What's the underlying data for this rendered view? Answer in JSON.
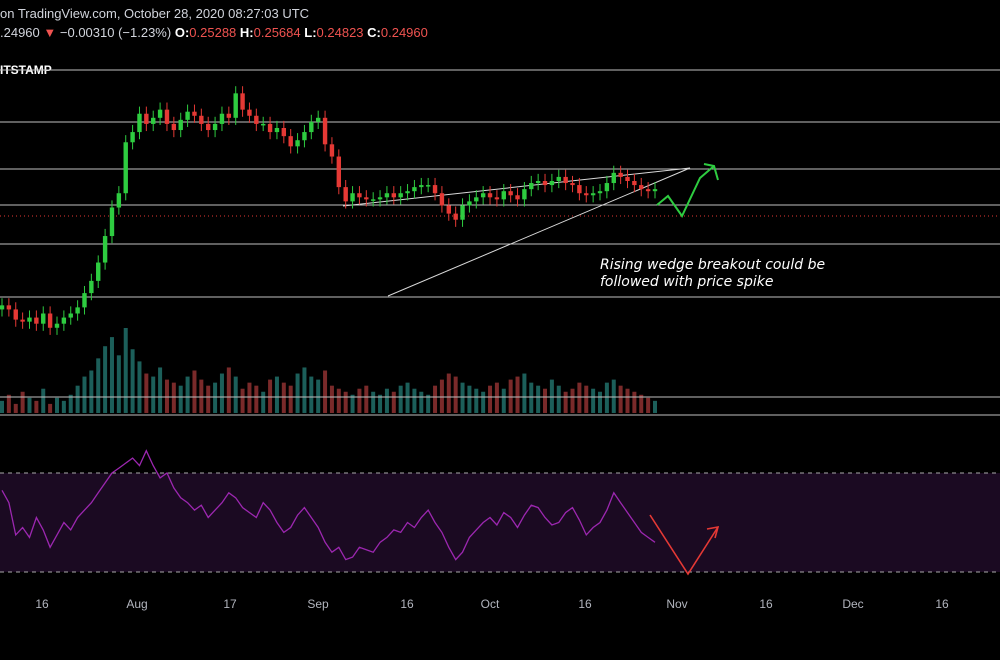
{
  "header": {
    "attribution": "on TradingView.com, October 28, 2020 08:27:03 UTC",
    "price": ".24960",
    "change_arrow": "▼",
    "change": "−0.00310 (−1.23%)",
    "ohlc": [
      {
        "key": "O:",
        "value": "0.25288"
      },
      {
        "key": "H:",
        "value": "0.25684"
      },
      {
        "key": "L:",
        "value": "0.24823"
      },
      {
        "key": "C:",
        "value": "0.24960"
      }
    ],
    "exchange_label": "ITSTAMP"
  },
  "annotation": {
    "line1": "Rising wedge breakout could be",
    "line2": "followed with price spike"
  },
  "colors": {
    "background": "#000000",
    "up": "#26a69a",
    "candle_up": "#2ecc40",
    "candle_down": "#e53935",
    "rsi": "#9c27b0",
    "rsi_band": "#1b0a22",
    "projection_green": "#2ecc40",
    "projection_red": "#e53935",
    "level_line": "#bfbfbf",
    "wedge_line": "#d9d9d9",
    "text": "#d1d4dc"
  },
  "chart_data": {
    "type": "candlestick",
    "x_axis_labels": [
      "16",
      "Aug",
      "17",
      "Sep",
      "16",
      "Oct",
      "16",
      "Nov",
      "16",
      "Dec",
      "16"
    ],
    "horizontal_levels_count": 6,
    "price_series": [
      0.207,
      0.205,
      0.2,
      0.199,
      0.201,
      0.198,
      0.203,
      0.196,
      0.198,
      0.201,
      0.203,
      0.206,
      0.213,
      0.219,
      0.228,
      0.241,
      0.255,
      0.262,
      0.287,
      0.292,
      0.301,
      0.296,
      0.299,
      0.303,
      0.296,
      0.293,
      0.298,
      0.302,
      0.3,
      0.296,
      0.293,
      0.296,
      0.301,
      0.299,
      0.311,
      0.303,
      0.3,
      0.296,
      0.296,
      0.292,
      0.294,
      0.29,
      0.285,
      0.288,
      0.292,
      0.297,
      0.299,
      0.286,
      0.28,
      0.265,
      0.258,
      0.262,
      0.26,
      0.259,
      0.259,
      0.26,
      0.262,
      0.26,
      0.262,
      0.263,
      0.265,
      0.266,
      0.266,
      0.262,
      0.256,
      0.252,
      0.249,
      0.256,
      0.258,
      0.26,
      0.262,
      0.26,
      0.259,
      0.263,
      0.261,
      0.259,
      0.264,
      0.267,
      0.268,
      0.266,
      0.268,
      0.27,
      0.267,
      0.266,
      0.262,
      0.261,
      0.262,
      0.263,
      0.267,
      0.272,
      0.27,
      0.268,
      0.266,
      0.264,
      0.263,
      0.264
    ],
    "volume_series": [
      4,
      6,
      3,
      7,
      5,
      4,
      8,
      3,
      5,
      4,
      6,
      9,
      12,
      14,
      18,
      22,
      25,
      19,
      28,
      21,
      17,
      13,
      12,
      15,
      11,
      10,
      9,
      12,
      14,
      11,
      9,
      10,
      13,
      15,
      12,
      8,
      10,
      9,
      7,
      11,
      12,
      10,
      9,
      13,
      15,
      12,
      11,
      14,
      9,
      8,
      7,
      6,
      8,
      9,
      7,
      6,
      8,
      7,
      9,
      10,
      8,
      7,
      6,
      9,
      11,
      13,
      12,
      10,
      9,
      8,
      7,
      9,
      10,
      8,
      11,
      12,
      13,
      10,
      9,
      8,
      11,
      9,
      7,
      8,
      10,
      9,
      8,
      7,
      10,
      11,
      9,
      8,
      7,
      6,
      5,
      4
    ],
    "rsi_series": [
      63,
      58,
      45,
      48,
      44,
      52,
      47,
      40,
      45,
      50,
      47,
      52,
      55,
      58,
      62,
      66,
      70,
      72,
      74,
      76,
      73,
      79,
      73,
      68,
      70,
      64,
      60,
      58,
      55,
      57,
      52,
      55,
      58,
      62,
      60,
      56,
      54,
      52,
      58,
      55,
      50,
      46,
      48,
      53,
      56,
      52,
      48,
      42,
      38,
      40,
      35,
      36,
      40,
      39,
      38,
      42,
      44,
      47,
      46,
      50,
      48,
      52,
      55,
      50,
      46,
      40,
      35,
      38,
      44,
      47,
      50,
      52,
      49,
      54,
      52,
      48,
      53,
      57,
      56,
      52,
      49,
      50,
      54,
      56,
      51,
      45,
      48,
      50,
      55,
      62,
      58,
      54,
      50,
      46,
      44,
      42
    ],
    "rsi_upper": 70,
    "rsi_lower": 30,
    "y_min": 0.19,
    "y_max": 0.32
  }
}
